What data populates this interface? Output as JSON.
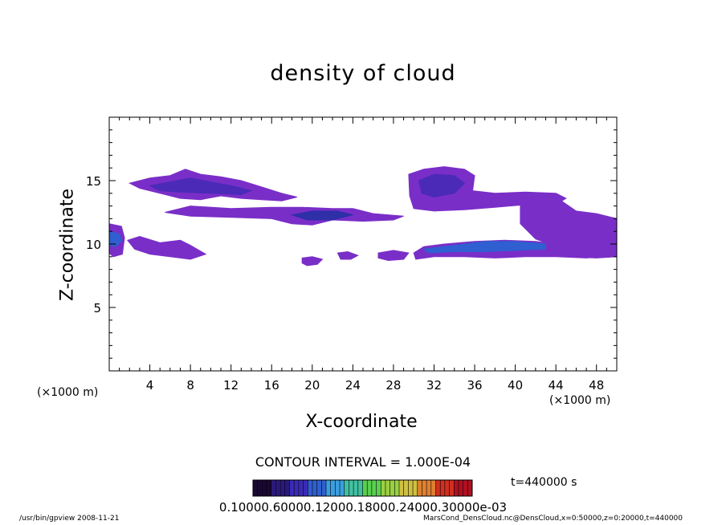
{
  "chart_data": {
    "type": "heatmap",
    "title": "density of cloud",
    "xlabel": "X-coordinate",
    "ylabel": "Z-coordinate",
    "x_unit_left": "(×1000 m)",
    "x_unit_right": "(×1000 m)",
    "xlim": [
      0,
      50
    ],
    "ylim": [
      0,
      20
    ],
    "xticks": [
      "4",
      "8",
      "12",
      "16",
      "20",
      "24",
      "28",
      "32",
      "36",
      "40",
      "44",
      "48"
    ],
    "yticks": [
      "5",
      "10",
      "15"
    ],
    "xtick_values": [
      4,
      8,
      12,
      16,
      20,
      24,
      28,
      32,
      36,
      40,
      44,
      48
    ],
    "ytick_values": [
      5,
      10,
      15
    ],
    "contour_interval": "CONTOUR INTERVAL = 1.000E-04",
    "time_label": "t=440000 s",
    "colorbar_labels": "0.10000.60000.12000.18000.24000.30000e-03",
    "colorbar_colors": [
      "#1a0633",
      "#2b1a7a",
      "#3a2ab8",
      "#2f5fd0",
      "#3a9fe0",
      "#40c0a0",
      "#5ad050",
      "#9ad040",
      "#d0c040",
      "#e08030",
      "#d03020",
      "#b01020"
    ],
    "regions": [
      {
        "name": "upper-left-band",
        "color": "#7a2ec8",
        "points": [
          [
            2,
            14.8
          ],
          [
            4,
            15.2
          ],
          [
            6,
            15.4
          ],
          [
            7.5,
            15.9
          ],
          [
            9,
            15.5
          ],
          [
            11,
            15.3
          ],
          [
            13,
            15
          ],
          [
            15,
            14.5
          ],
          [
            17,
            14
          ],
          [
            18.5,
            13.7
          ],
          [
            17,
            13.4
          ],
          [
            15,
            13.5
          ],
          [
            13,
            13.6
          ],
          [
            11,
            13.8
          ],
          [
            9,
            13.5
          ],
          [
            7,
            13.6
          ],
          [
            5,
            14
          ],
          [
            3,
            14.4
          ]
        ]
      },
      {
        "name": "upper-left-core",
        "color": "#4b2ab8",
        "points": [
          [
            4,
            14.6
          ],
          [
            6,
            14.9
          ],
          [
            8,
            15.2
          ],
          [
            10,
            14.9
          ],
          [
            12,
            14.6
          ],
          [
            14,
            14.2
          ],
          [
            13,
            13.9
          ],
          [
            10,
            14
          ],
          [
            7,
            14.1
          ],
          [
            5,
            14.2
          ]
        ]
      },
      {
        "name": "mid-strip",
        "color": "#7a2ec8",
        "points": [
          [
            5.5,
            12.5
          ],
          [
            8,
            13
          ],
          [
            12,
            12.8
          ],
          [
            16,
            12.9
          ],
          [
            19,
            12.9
          ],
          [
            22,
            12.8
          ],
          [
            24,
            12.8
          ],
          [
            26,
            12.4
          ],
          [
            29,
            12.2
          ],
          [
            28,
            11.9
          ],
          [
            25,
            11.8
          ],
          [
            22,
            11.9
          ],
          [
            20,
            11.5
          ],
          [
            18,
            11.6
          ],
          [
            16,
            12
          ],
          [
            12,
            12.1
          ],
          [
            8,
            12.2
          ]
        ]
      },
      {
        "name": "mid-strip-core",
        "color": "#2f2fa8",
        "points": [
          [
            18,
            12.3
          ],
          [
            20,
            12.6
          ],
          [
            22.5,
            12.6
          ],
          [
            24,
            12.3
          ],
          [
            22,
            11.9
          ],
          [
            19.5,
            11.9
          ]
        ]
      },
      {
        "name": "upper-right-dome",
        "color": "#7a2ec8",
        "points": [
          [
            29.5,
            15.5
          ],
          [
            31,
            15.9
          ],
          [
            33,
            16.1
          ],
          [
            35,
            15.9
          ],
          [
            36,
            15.4
          ],
          [
            35.8,
            14.2
          ],
          [
            38,
            14
          ],
          [
            41,
            14.1
          ],
          [
            44,
            14
          ],
          [
            45,
            13.6
          ],
          [
            44,
            13.1
          ],
          [
            41,
            13.1
          ],
          [
            38,
            12.9
          ],
          [
            35,
            12.7
          ],
          [
            32,
            12.6
          ],
          [
            30,
            12.8
          ],
          [
            29.6,
            13.8
          ]
        ]
      },
      {
        "name": "upper-right-dome-core",
        "color": "#4b2ab8",
        "points": [
          [
            30.5,
            15
          ],
          [
            32,
            15.5
          ],
          [
            34,
            15.4
          ],
          [
            35,
            14.8
          ],
          [
            34,
            14
          ],
          [
            32,
            13.7
          ],
          [
            30.8,
            14
          ]
        ]
      },
      {
        "name": "right-cloud",
        "color": "#7a2ec8",
        "points": [
          [
            40.5,
            13.2
          ],
          [
            42,
            13.5
          ],
          [
            44,
            13.7
          ],
          [
            46,
            12.6
          ],
          [
            48,
            12.4
          ],
          [
            50,
            12
          ],
          [
            50,
            9
          ],
          [
            48,
            8.9
          ],
          [
            45,
            9
          ],
          [
            44,
            9.8
          ],
          [
            42,
            10.4
          ],
          [
            40.5,
            11.6
          ]
        ]
      },
      {
        "name": "lower-right-band",
        "color": "#7a2ec8",
        "points": [
          [
            30,
            9.3
          ],
          [
            31,
            9.8
          ],
          [
            33,
            10
          ],
          [
            36,
            10.2
          ],
          [
            39,
            10.3
          ],
          [
            42,
            10.2
          ],
          [
            44,
            10
          ],
          [
            46,
            10
          ],
          [
            48,
            10.2
          ],
          [
            50,
            10.3
          ],
          [
            50,
            9.1
          ],
          [
            47,
            8.9
          ],
          [
            44,
            9
          ],
          [
            41,
            9
          ],
          [
            38,
            8.9
          ],
          [
            35,
            9
          ],
          [
            32,
            9
          ],
          [
            30.2,
            8.8
          ]
        ]
      },
      {
        "name": "lower-right-core",
        "color": "#2f5fd0",
        "points": [
          [
            31,
            9.6
          ],
          [
            34,
            9.9
          ],
          [
            37,
            10.2
          ],
          [
            40,
            10.2
          ],
          [
            43,
            10
          ],
          [
            43,
            9.6
          ],
          [
            40,
            9.5
          ],
          [
            37,
            9.4
          ],
          [
            34,
            9.4
          ],
          [
            31.5,
            9.3
          ]
        ]
      },
      {
        "name": "left-edge",
        "color": "#7a2ec8",
        "points": [
          [
            0,
            11.6
          ],
          [
            1.2,
            11.4
          ],
          [
            1.5,
            10.5
          ],
          [
            1.3,
            9.2
          ],
          [
            0.4,
            9.0
          ],
          [
            0,
            9.3
          ]
        ]
      },
      {
        "name": "left-edge-core",
        "color": "#2f5fd0",
        "points": [
          [
            0,
            11
          ],
          [
            1,
            10.8
          ],
          [
            1.2,
            10.2
          ],
          [
            0.6,
            9.8
          ],
          [
            0,
            9.9
          ]
        ]
      },
      {
        "name": "lower-left-band",
        "color": "#7a2ec8",
        "points": [
          [
            1.8,
            10.3
          ],
          [
            3,
            10.6
          ],
          [
            5,
            10.1
          ],
          [
            7,
            10.3
          ],
          [
            8,
            9.9
          ],
          [
            9.5,
            9.2
          ],
          [
            8,
            8.8
          ],
          [
            6,
            9
          ],
          [
            4,
            9.2
          ],
          [
            2.5,
            9.6
          ]
        ]
      },
      {
        "name": "blob-20",
        "color": "#7a2ec8",
        "points": [
          [
            19,
            8.9
          ],
          [
            20,
            9
          ],
          [
            21,
            8.8
          ],
          [
            20.5,
            8.4
          ],
          [
            19.5,
            8.3
          ],
          [
            19,
            8.5
          ]
        ]
      },
      {
        "name": "blob-23",
        "color": "#7a2ec8",
        "points": [
          [
            22.5,
            9.3
          ],
          [
            23.5,
            9.4
          ],
          [
            24.5,
            9.1
          ],
          [
            23.8,
            8.8
          ],
          [
            22.8,
            8.8
          ]
        ]
      },
      {
        "name": "blob-27",
        "color": "#7a2ec8",
        "points": [
          [
            26.5,
            9.3
          ],
          [
            28,
            9.5
          ],
          [
            29.5,
            9.3
          ],
          [
            29,
            8.8
          ],
          [
            27.5,
            8.7
          ],
          [
            26.5,
            8.9
          ]
        ]
      }
    ]
  },
  "footer": {
    "left": "/usr/bin/gpview  2008-11-21",
    "right": "MarsCond_DensCloud.nc@DensCloud,x=0:50000,z=0:20000,t=440000"
  }
}
